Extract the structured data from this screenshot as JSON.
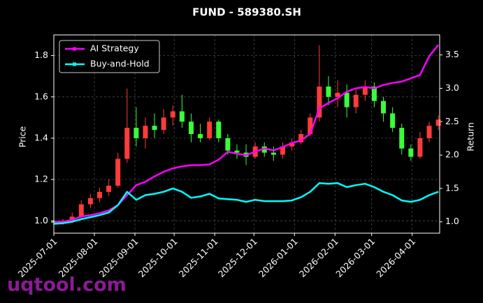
{
  "chart_data": {
    "type": "candlestick",
    "title": "FUND - 589380.SH",
    "ylabel": "Price",
    "y2label": "Return",
    "watermark": "uqtool.com",
    "up_color": "#ff3b3b",
    "down_color": "#39ff39",
    "grid": true,
    "legend": "upper left",
    "x": [
      "2025-07-01",
      "2025-07-08",
      "2025-07-15",
      "2025-07-22",
      "2025-07-29",
      "2025-08-05",
      "2025-08-12",
      "2025-08-19",
      "2025-08-26",
      "2025-09-02",
      "2025-09-09",
      "2025-09-16",
      "2025-09-23",
      "2025-09-30",
      "2025-10-07",
      "2025-10-14",
      "2025-10-21",
      "2025-10-28",
      "2025-11-04",
      "2025-11-11",
      "2025-11-18",
      "2025-11-25",
      "2025-12-02",
      "2025-12-09",
      "2025-12-16",
      "2025-12-23",
      "2025-12-30",
      "2026-01-06",
      "2026-01-13",
      "2026-01-20",
      "2026-01-27",
      "2026-02-03",
      "2026-02-10",
      "2026-02-17",
      "2026-02-24",
      "2026-03-03",
      "2026-03-10",
      "2026-03-17",
      "2026-03-24",
      "2026-03-31",
      "2026-04-07",
      "2026-04-14",
      "2026-04-21"
    ],
    "open": [
      1.0,
      0.99,
      1.0,
      1.02,
      1.08,
      1.11,
      1.14,
      1.17,
      1.3,
      1.45,
      1.4,
      1.46,
      1.44,
      1.5,
      1.53,
      1.48,
      1.42,
      1.4,
      1.48,
      1.4,
      1.34,
      1.33,
      1.31,
      1.36,
      1.33,
      1.32,
      1.36,
      1.38,
      1.42,
      1.5,
      1.65,
      1.6,
      1.62,
      1.55,
      1.61,
      1.65,
      1.58,
      1.52,
      1.45,
      1.35,
      1.31,
      1.4,
      1.46
    ],
    "high": [
      1.01,
      1.01,
      1.04,
      1.1,
      1.13,
      1.16,
      1.2,
      1.33,
      1.64,
      1.55,
      1.5,
      1.52,
      1.54,
      1.56,
      1.61,
      1.52,
      1.47,
      1.5,
      1.49,
      1.42,
      1.37,
      1.37,
      1.38,
      1.38,
      1.36,
      1.38,
      1.4,
      1.44,
      1.52,
      1.85,
      1.7,
      1.68,
      1.66,
      1.64,
      1.68,
      1.67,
      1.6,
      1.55,
      1.47,
      1.37,
      1.43,
      1.48,
      1.51
    ],
    "low": [
      0.98,
      0.98,
      0.99,
      1.01,
      1.06,
      1.09,
      1.12,
      1.16,
      1.28,
      1.36,
      1.35,
      1.4,
      1.42,
      1.46,
      1.45,
      1.38,
      1.38,
      1.39,
      1.38,
      1.32,
      1.3,
      1.27,
      1.3,
      1.31,
      1.29,
      1.3,
      1.34,
      1.37,
      1.41,
      1.48,
      1.56,
      1.55,
      1.5,
      1.52,
      1.58,
      1.55,
      1.48,
      1.43,
      1.32,
      1.29,
      1.3,
      1.38,
      1.44
    ],
    "close": [
      0.99,
      1.0,
      1.02,
      1.08,
      1.11,
      1.14,
      1.17,
      1.3,
      1.45,
      1.4,
      1.46,
      1.44,
      1.5,
      1.53,
      1.48,
      1.42,
      1.4,
      1.48,
      1.4,
      1.34,
      1.33,
      1.31,
      1.36,
      1.33,
      1.32,
      1.36,
      1.38,
      1.42,
      1.5,
      1.65,
      1.6,
      1.62,
      1.55,
      1.61,
      1.65,
      1.58,
      1.52,
      1.45,
      1.35,
      1.31,
      1.4,
      1.46,
      1.49
    ],
    "series": [
      {
        "name": "AI Strategy",
        "color": "#ff00ff",
        "axis": "y2",
        "values": [
          1.0,
          1.0,
          1.03,
          1.08,
          1.1,
          1.13,
          1.17,
          1.25,
          1.4,
          1.55,
          1.6,
          1.68,
          1.75,
          1.8,
          1.83,
          1.85,
          1.85,
          1.86,
          1.93,
          2.05,
          2.02,
          2.0,
          2.05,
          2.1,
          2.07,
          2.12,
          2.18,
          2.22,
          2.32,
          2.7,
          2.78,
          2.85,
          2.95,
          3.0,
          3.02,
          3.0,
          3.05,
          3.08,
          3.1,
          3.15,
          3.2,
          3.48,
          3.65
        ]
      },
      {
        "name": "Buy-and-Hold",
        "color": "#00ffff",
        "axis": "y2",
        "values": [
          0.97,
          0.98,
          1.0,
          1.04,
          1.07,
          1.1,
          1.14,
          1.25,
          1.45,
          1.33,
          1.4,
          1.42,
          1.45,
          1.5,
          1.45,
          1.36,
          1.38,
          1.42,
          1.35,
          1.34,
          1.33,
          1.3,
          1.33,
          1.31,
          1.31,
          1.31,
          1.32,
          1.37,
          1.45,
          1.58,
          1.57,
          1.58,
          1.52,
          1.55,
          1.57,
          1.52,
          1.45,
          1.4,
          1.32,
          1.3,
          1.33,
          1.4,
          1.45
        ]
      }
    ],
    "xlim": [
      "2025-07-01",
      "2026-04-22"
    ],
    "xticks": [
      "2025-07-01",
      "2025-08-01",
      "2025-09-01",
      "2025-10-01",
      "2025-11-01",
      "2025-12-01",
      "2026-01-01",
      "2026-02-01",
      "2026-03-01",
      "2026-04-01"
    ],
    "ylim": [
      0.94,
      1.9
    ],
    "yticks": [
      {
        "value": 1,
        "label": "1.0"
      },
      1.2,
      1.4,
      1.6,
      1.8
    ],
    "y2lim": [
      0.83,
      3.8
    ],
    "y2ticks": [
      {
        "value": 1,
        "label": "1.0"
      },
      1.5,
      {
        "value": 2,
        "label": "2.0"
      },
      2.5,
      {
        "value": 3,
        "label": "3.0"
      },
      3.5
    ]
  }
}
